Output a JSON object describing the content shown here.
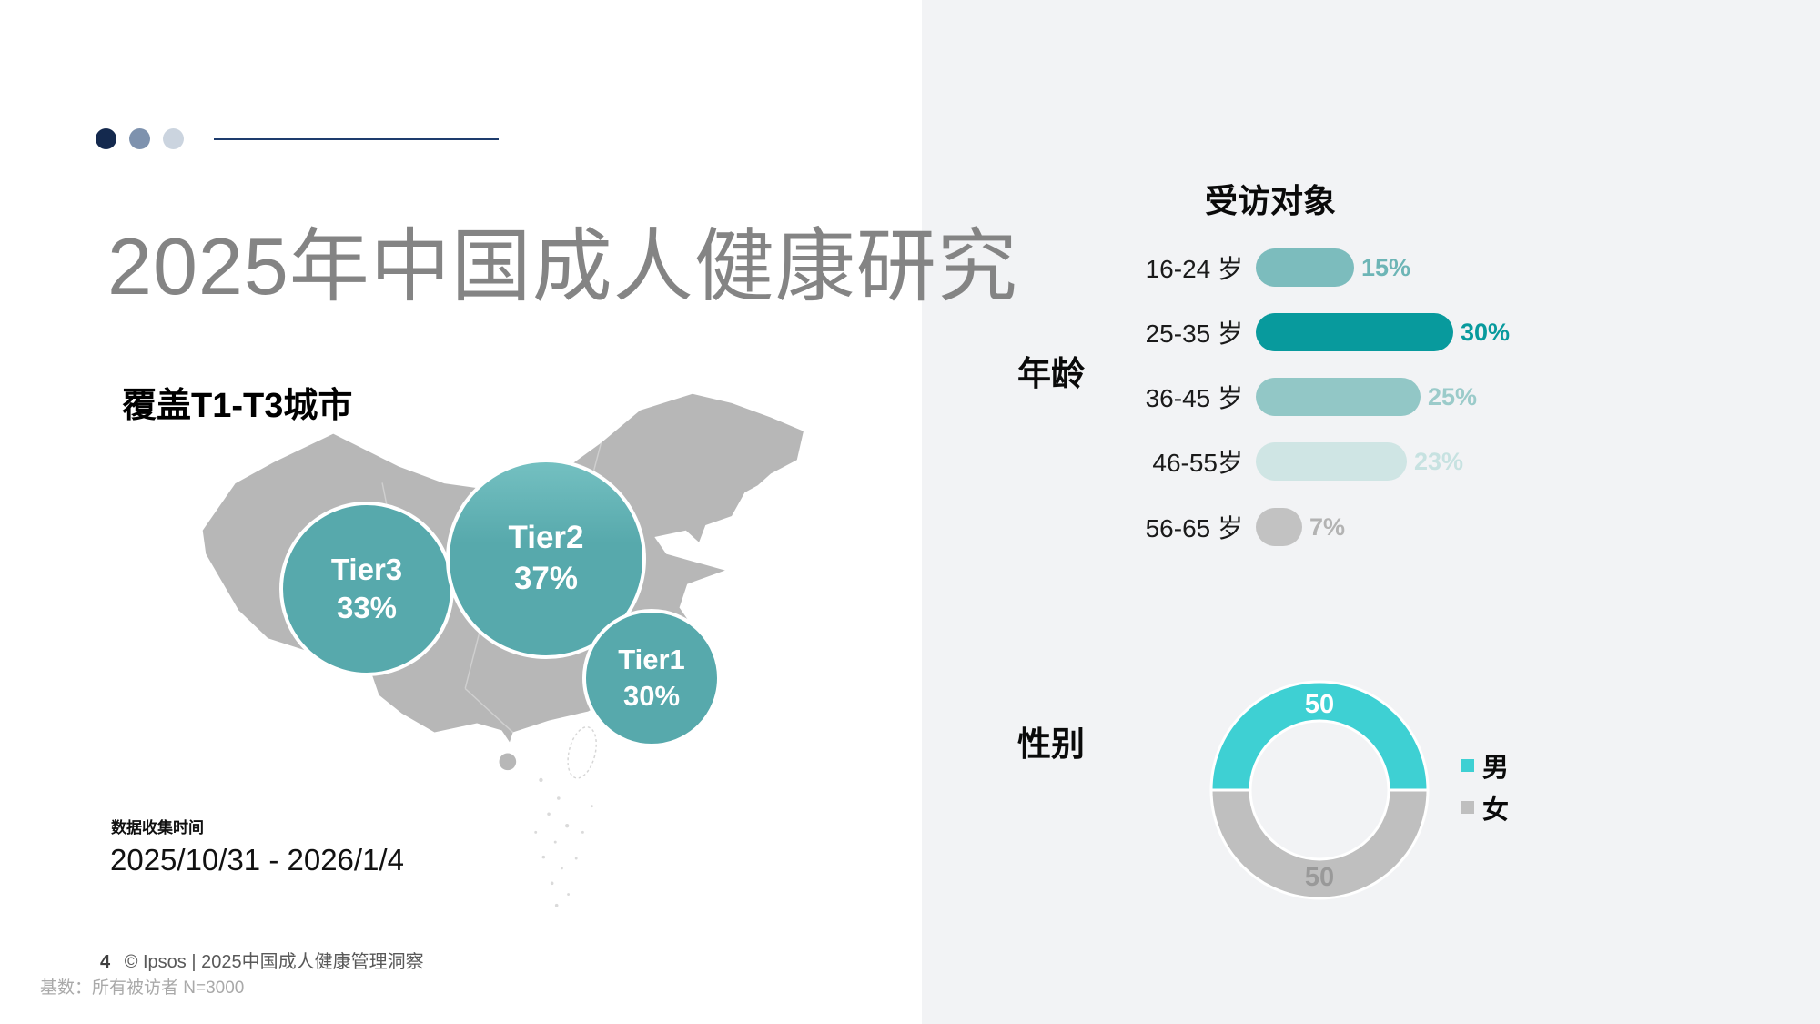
{
  "decor": {
    "dot_colors": [
      "#14294e",
      "#7e92ae",
      "#cbd4df"
    ],
    "line_color": "#1e3c6d"
  },
  "title": "2025年中国成人健康研究",
  "left": {
    "map_heading": "覆盖T1-T3城市",
    "bubbles": [
      {
        "label": "Tier3",
        "pct": "33%"
      },
      {
        "label": "Tier2",
        "pct": "37%"
      },
      {
        "label": "Tier1",
        "pct": "30%"
      }
    ],
    "collection": {
      "label": "数据收集时间",
      "range": "2025/10/31 - 2026/1/4"
    },
    "footer": {
      "page_number": "4",
      "text": "© Ipsos | 2025中国成人健康管理洞察",
      "base_note": "基数：所有被访者 N=3000"
    }
  },
  "right": {
    "heading": "受访对象",
    "age": {
      "label": "年龄",
      "rows": [
        {
          "range": "16-24 岁",
          "pct": "15%"
        },
        {
          "range": "25-35 岁",
          "pct": "30%"
        },
        {
          "range": "36-45 岁",
          "pct": "25%"
        },
        {
          "range": "46-55岁",
          "pct": "23%"
        },
        {
          "range": "56-65 岁",
          "pct": "7%"
        }
      ]
    },
    "gender": {
      "label": "性别",
      "male_value": "50",
      "female_value": "50",
      "legend_male": "男",
      "legend_female": "女"
    }
  },
  "chart_data": [
    {
      "type": "bar",
      "title": "受访对象 — 年龄",
      "orientation": "horizontal",
      "categories": [
        "16-24 岁",
        "25-35 岁",
        "36-45 岁",
        "46-55岁",
        "56-65 岁"
      ],
      "values": [
        15,
        30,
        25,
        23,
        7
      ],
      "unit": "%",
      "xlim": [
        0,
        40
      ],
      "grid": false,
      "bar_colors": [
        "#7cbcbd",
        "#089a9d",
        "#92c7c6",
        "#cfe5e4",
        "#c2c2c2"
      ],
      "value_label_colors": [
        "#6db5b6",
        "#089a9d",
        "#9bcbca",
        "#c7e2e1",
        "#b3b3b3"
      ],
      "highlight_category": "25-35 岁"
    },
    {
      "type": "pie",
      "title": "性别",
      "donut": true,
      "labels": [
        "男",
        "女"
      ],
      "values": [
        50,
        50
      ],
      "colors": [
        "#3ed0d3",
        "#bfbfbf"
      ],
      "legend_position": "right"
    },
    {
      "type": "bubble",
      "title": "覆盖T1-T3城市",
      "labels": [
        "Tier1",
        "Tier2",
        "Tier3"
      ],
      "values": [
        30,
        37,
        33
      ],
      "unit": "%",
      "bubble_color": "#57a9ac",
      "map": "China"
    }
  ]
}
